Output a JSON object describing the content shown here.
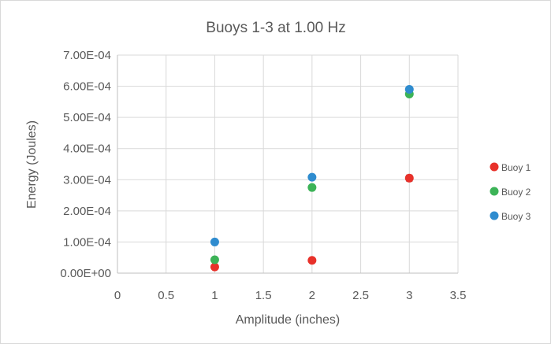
{
  "chart_data": {
    "type": "scatter",
    "title": "Buoys 1-3 at 1.00 Hz",
    "xlabel": "Amplitude (inches)",
    "ylabel": "Energy (Joules)",
    "xlim": [
      0,
      3.5
    ],
    "ylim": [
      0,
      0.0007
    ],
    "x_ticks": [
      "0",
      "0.5",
      "1",
      "1.5",
      "2",
      "2.5",
      "3",
      "3.5"
    ],
    "y_ticks": [
      "0.00E+00",
      "1.00E-04",
      "2.00E-04",
      "3.00E-04",
      "4.00E-04",
      "5.00E-04",
      "6.00E-04",
      "7.00E-04"
    ],
    "x_tick_values": [
      0,
      0.5,
      1,
      1.5,
      2,
      2.5,
      3,
      3.5
    ],
    "y_tick_values": [
      0,
      0.0001,
      0.0002,
      0.0003,
      0.0004,
      0.0005,
      0.0006,
      0.0007
    ],
    "grid": true,
    "legend_position": "right",
    "series": [
      {
        "name": "Buoy 1",
        "color": "#e8312a",
        "x": [
          1,
          2,
          3
        ],
        "y": [
          2e-05,
          4.1e-05,
          0.000305
        ],
        "error": [
          4e-06,
          4e-06,
          1e-05
        ]
      },
      {
        "name": "Buoy 2",
        "color": "#3cb357",
        "x": [
          1,
          2,
          3
        ],
        "y": [
          4.3e-05,
          0.000275,
          0.000575
        ],
        "error": [
          4e-06,
          6e-06,
          6e-06
        ]
      },
      {
        "name": "Buoy 3",
        "color": "#2f8ccf",
        "x": [
          1,
          2,
          3
        ],
        "y": [
          0.0001,
          0.000308,
          0.00059
        ],
        "error": [
          5e-06,
          6e-06,
          6e-06
        ]
      }
    ]
  }
}
